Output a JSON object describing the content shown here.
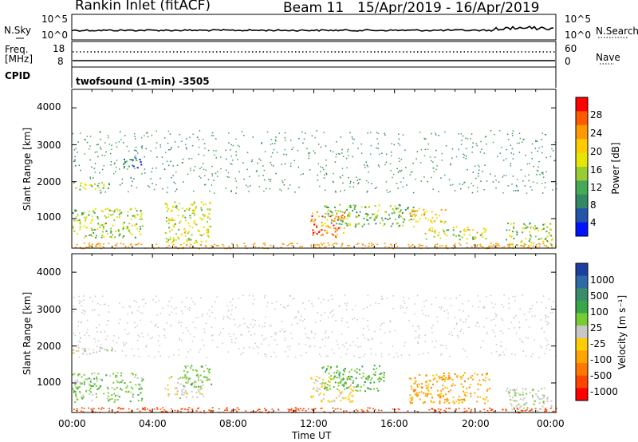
{
  "header": {
    "station": "Rankin Inlet (fitACF)",
    "beam": "Beam 11",
    "dates": "15/Apr/2019 - 16/Apr/2019"
  },
  "noise_panel": {
    "left_label": "N.Sky",
    "right_label": "N.Search",
    "left_ticks": [
      "10^5",
      "10^0"
    ],
    "right_ticks": [
      "10^5",
      "10^0"
    ]
  },
  "freq_panel": {
    "left_label_1": "Freq.",
    "left_label_2": "[MHz]",
    "right_label": "Nave",
    "left_ticks": [
      "18",
      "8"
    ],
    "right_ticks": [
      "60",
      "0"
    ]
  },
  "cpid": {
    "label": "CPID",
    "value": "twofsound (1-min) -3505"
  },
  "power_panel": {
    "ylabel": "Slant Range [km]",
    "yticks": [
      "4000",
      "3000",
      "2000",
      "1000"
    ],
    "colorbar_label": "Power [dB]",
    "colorbar_ticks": [
      "28",
      "24",
      "20",
      "16",
      "12",
      "8",
      "4"
    ],
    "colorbar_colors": [
      "#ff0000",
      "#ff5a00",
      "#ff9900",
      "#ffcc00",
      "#e6e600",
      "#99cc33",
      "#44aa55",
      "#338866",
      "#2255aa",
      "#0011ff"
    ]
  },
  "velocity_panel": {
    "ylabel": "Slant Range [km]",
    "yticks": [
      "4000",
      "3000",
      "2000",
      "1000"
    ],
    "colorbar_label": "Velocity [m s⁻¹]",
    "colorbar_ticks": [
      "1000",
      "500",
      "100",
      "25",
      "-25",
      "-100",
      "-500",
      "-1000"
    ],
    "colorbar_colors": [
      "#1a3f9e",
      "#2e6aa8",
      "#3a8c6a",
      "#3aa64a",
      "#77cc33",
      "#c8c8c8",
      "#ffcc00",
      "#ffa500",
      "#ff7700",
      "#ff4400",
      "#ff0000"
    ]
  },
  "xaxis": {
    "label": "Time UT",
    "ticks": [
      "00:00",
      "04:00",
      "08:00",
      "12:00",
      "16:00",
      "20:00",
      "00:00"
    ]
  },
  "chart_data": [
    {
      "type": "heatmap",
      "title": "Power",
      "xlabel": "Time UT",
      "ylabel": "Slant Range [km]",
      "xlim": [
        0,
        24
      ],
      "ylim": [
        200,
        4500
      ],
      "colorbar_range": [
        0,
        30
      ],
      "echo_regions": [
        {
          "t0": 0.0,
          "t1": 2.0,
          "r0": 1800,
          "r1": 2000,
          "power": 14
        },
        {
          "t0": 0.0,
          "t1": 3.5,
          "r0": 500,
          "r1": 1300,
          "power": 14
        },
        {
          "t0": 2.5,
          "t1": 3.5,
          "r0": 2400,
          "r1": 2700,
          "power": 6
        },
        {
          "t0": 4.6,
          "t1": 6.9,
          "r0": 350,
          "r1": 1500,
          "power": 16
        },
        {
          "t0": 11.8,
          "t1": 13.5,
          "r0": 500,
          "r1": 1200,
          "power": 24
        },
        {
          "t0": 12.5,
          "t1": 17.0,
          "r0": 800,
          "r1": 1400,
          "power": 12
        },
        {
          "t0": 16.7,
          "t1": 18.5,
          "r0": 900,
          "r1": 1300,
          "power": 20
        },
        {
          "t0": 17.5,
          "t1": 20.5,
          "r0": 450,
          "r1": 800,
          "power": 16
        },
        {
          "t0": 21.5,
          "t1": 23.8,
          "r0": 250,
          "r1": 900,
          "power": 14
        }
      ]
    },
    {
      "type": "heatmap",
      "title": "Velocity",
      "xlabel": "Time UT",
      "ylabel": "Slant Range [km]",
      "xlim": [
        0,
        24
      ],
      "ylim": [
        200,
        4500
      ],
      "colorbar_range": [
        -1000,
        1000
      ],
      "echo_regions": [
        {
          "t0": 0.0,
          "t1": 2.0,
          "r0": 1800,
          "r1": 2000,
          "velocity": 0
        },
        {
          "t0": 0.0,
          "t1": 3.5,
          "r0": 500,
          "r1": 1300,
          "velocity": 200
        },
        {
          "t0": 4.6,
          "t1": 6.5,
          "r0": 600,
          "r1": 1200,
          "velocity": 0
        },
        {
          "t0": 5.5,
          "t1": 6.9,
          "r0": 900,
          "r1": 1500,
          "velocity": 200
        },
        {
          "t0": 11.8,
          "t1": 14.0,
          "r0": 500,
          "r1": 1200,
          "velocity": -150
        },
        {
          "t0": 12.3,
          "t1": 15.5,
          "r0": 800,
          "r1": 1500,
          "velocity": 300
        },
        {
          "t0": 16.7,
          "t1": 20.7,
          "r0": 450,
          "r1": 1300,
          "velocity": -400
        },
        {
          "t0": 21.5,
          "t1": 23.8,
          "r0": 250,
          "r1": 900,
          "velocity": 50
        }
      ]
    }
  ]
}
